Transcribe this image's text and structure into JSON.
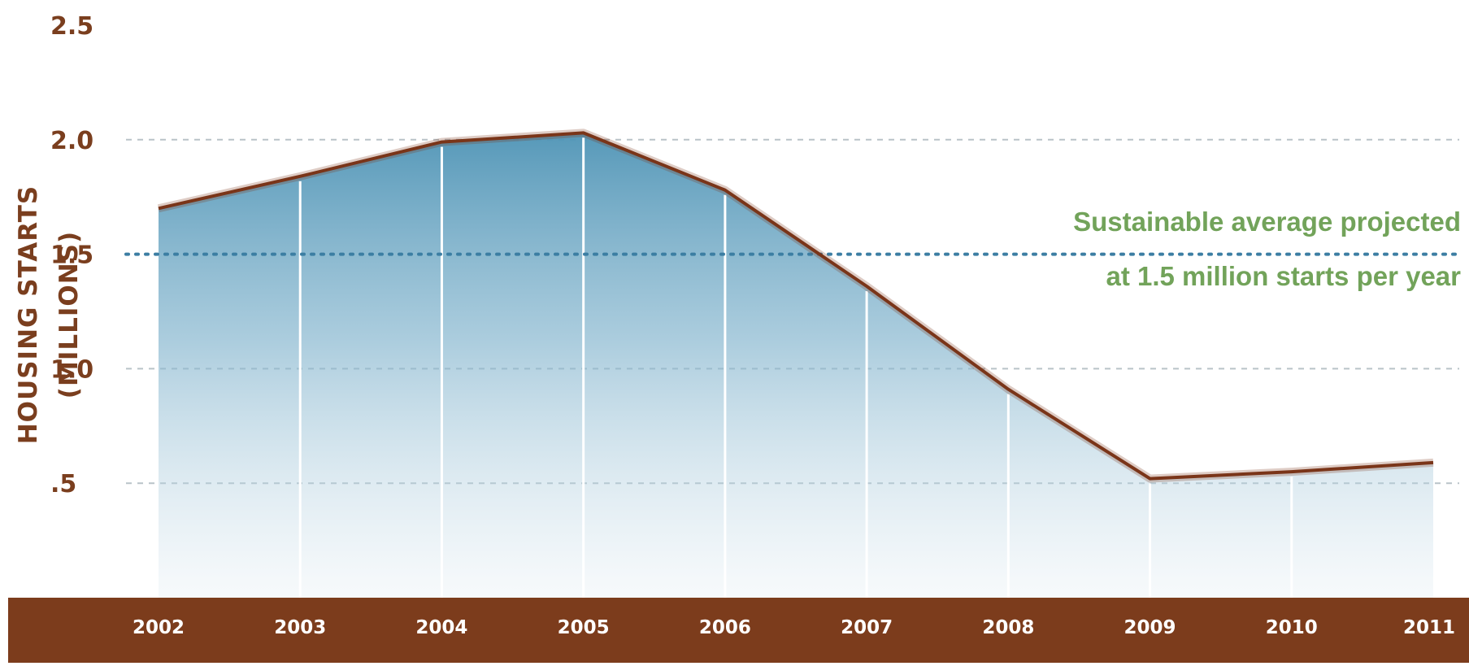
{
  "chart_data": {
    "type": "area",
    "title": "",
    "xlabel": "",
    "ylabel": "HOUSING STARTS (MILLIONS)",
    "categories": [
      "2002",
      "2003",
      "2004",
      "2005",
      "2006",
      "2007",
      "2008",
      "2009",
      "2010",
      "2011"
    ],
    "values": [
      1.7,
      1.84,
      1.99,
      2.03,
      1.78,
      1.36,
      0.91,
      0.52,
      0.55,
      0.59
    ],
    "ylim": [
      0,
      2.5
    ],
    "y_tick_labels": [
      "2.5",
      "2.0",
      "1.5",
      "1.0",
      ".5"
    ],
    "reference_line": {
      "value": 1.5,
      "label_line1": "Sustainable average projected",
      "label_line2": "at 1.5 million starts per year"
    },
    "grid": true,
    "colors": {
      "area_fill": "#4d93b5",
      "outline": "#7a3519",
      "axis_band": "#7c3c1c",
      "reference_line": "#3c7ea3",
      "annotation_text": "#72a35a",
      "tick_text": "#7a3e1e"
    }
  }
}
